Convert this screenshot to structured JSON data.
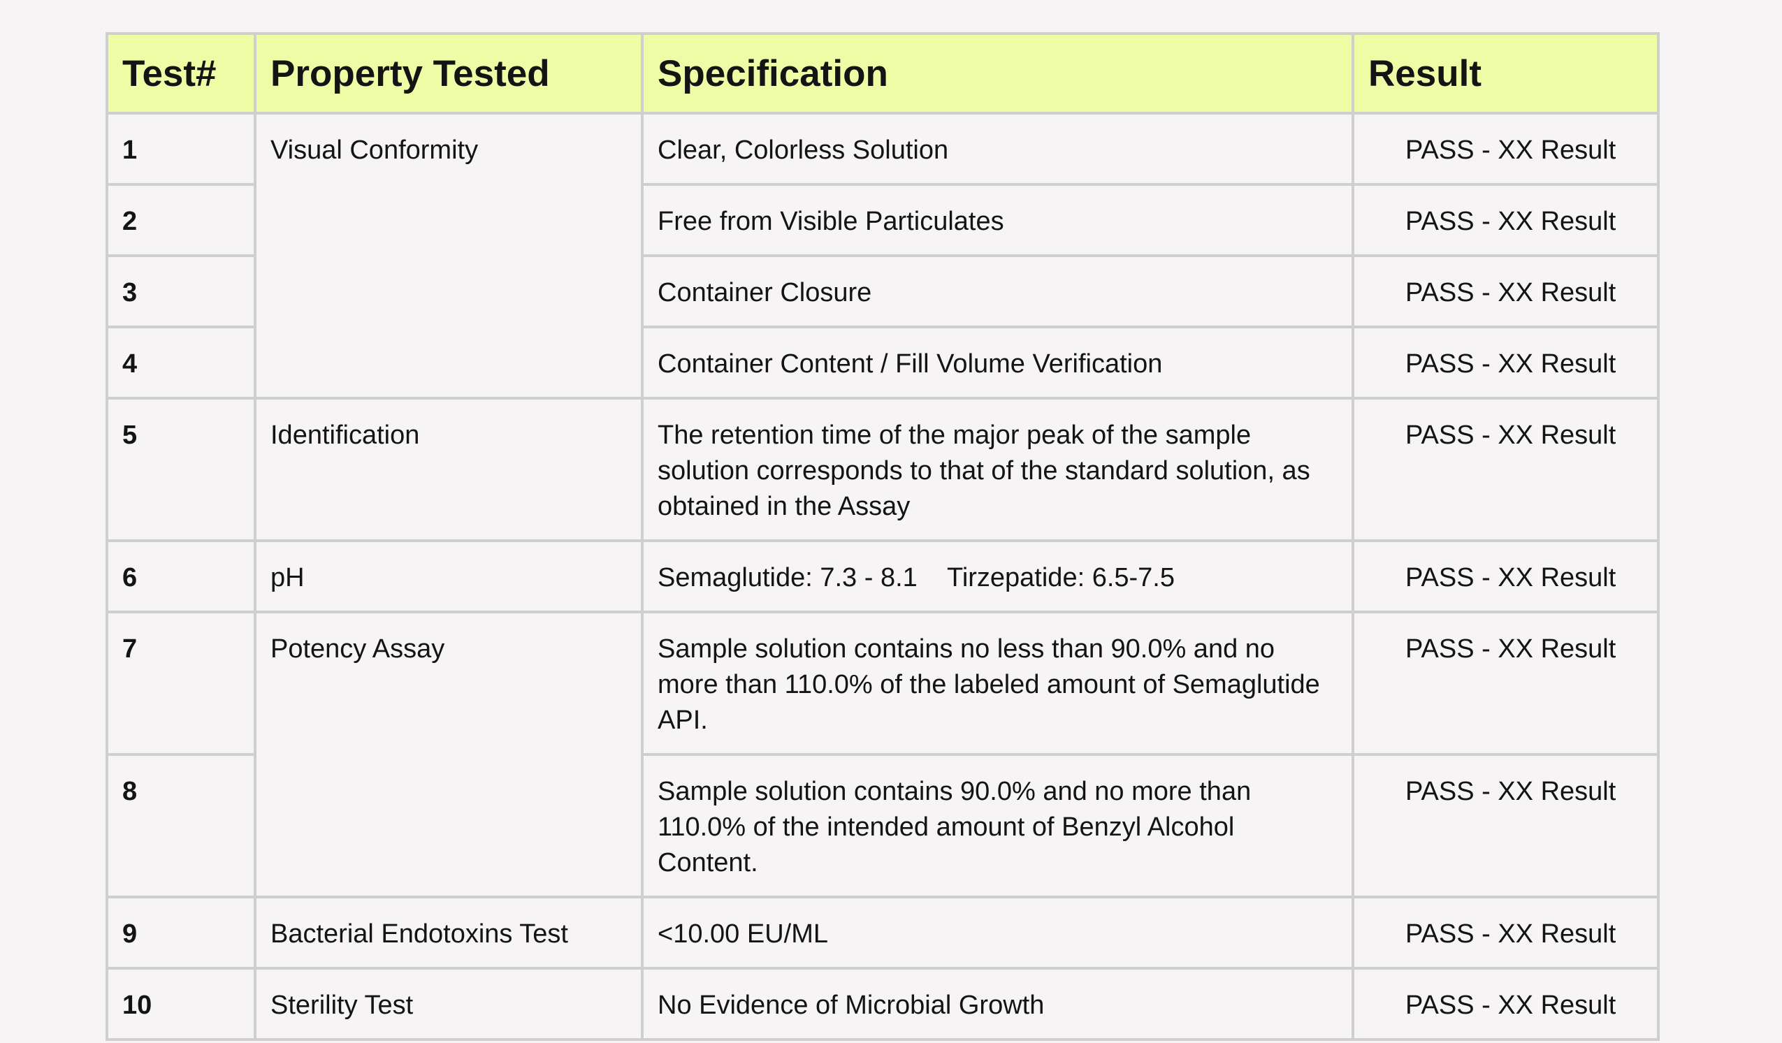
{
  "header": {
    "test_num": "Test#",
    "property": "Property Tested",
    "specification": "Specification",
    "result": "Result"
  },
  "rows": [
    {
      "num": "1",
      "property": "Visual Conformity",
      "spec": "Clear, Colorless Solution",
      "result": "PASS - XX Result"
    },
    {
      "num": "2",
      "spec": "Free from Visible Particulates",
      "result": "PASS - XX Result"
    },
    {
      "num": "3",
      "spec": "Container Closure",
      "result": "PASS - XX Result"
    },
    {
      "num": "4",
      "spec": "Container Content / Fill Volume Verification",
      "result": "PASS - XX Result"
    },
    {
      "num": "5",
      "property": "Identification",
      "spec": "The retention time of the major peak of the sample solution corresponds to that of the standard solution, as obtained in the Assay",
      "result": "PASS - XX Result"
    },
    {
      "num": "6",
      "property": "pH",
      "spec": "Semaglutide: 7.3 - 8.1    Tirzepatide: 6.5-7.5",
      "result": "PASS - XX Result"
    },
    {
      "num": "7",
      "property": "Potency Assay",
      "spec": "Sample solution contains no less than 90.0% and no more than 110.0% of the labeled amount of Semaglutide API.",
      "result": "PASS - XX Result"
    },
    {
      "num": "8",
      "spec": "Sample solution contains 90.0% and no more than 110.0% of the intended amount of Benzyl Alcohol Content.",
      "result": "PASS - XX Result"
    },
    {
      "num": "9",
      "property": "Bacterial Endotoxins Test",
      "spec": "<10.00 EU/ML",
      "result": "PASS - XX Result"
    },
    {
      "num": "10",
      "property": "Sterility Test",
      "spec": "No Evidence of Microbial Growth",
      "result": "PASS - XX Result"
    }
  ]
}
